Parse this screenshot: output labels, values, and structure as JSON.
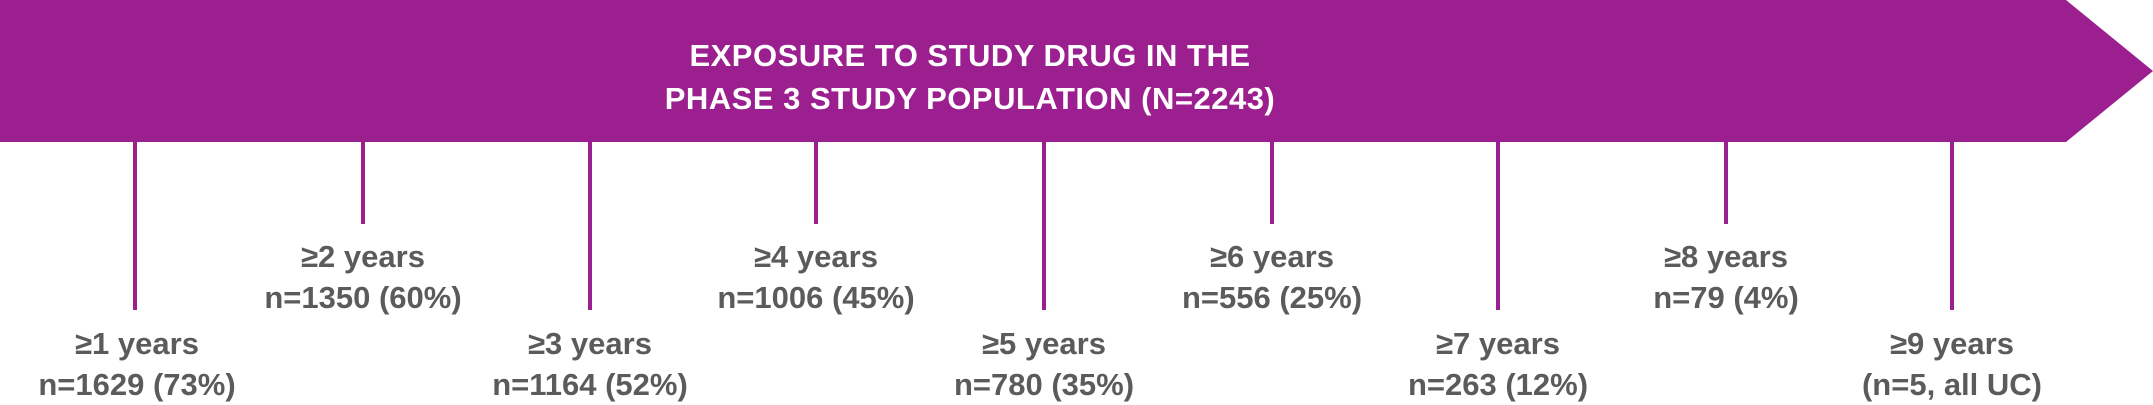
{
  "colors": {
    "banner": "#9b1f8e",
    "line": "#9b1f8e",
    "text": "#5b5b5b",
    "title_text": "#ffffff"
  },
  "title": {
    "line1": "EXPOSURE TO STUDY DRUG IN THE",
    "line2": "PHASE 3 STUDY POPULATION (N=2243)"
  },
  "milestones": [
    {
      "years": "≥1 years",
      "count": "n=1629 (73%)"
    },
    {
      "years": "≥2 years",
      "count": "n=1350 (60%)"
    },
    {
      "years": "≥3 years",
      "count": "n=1164 (52%)"
    },
    {
      "years": "≥4 years",
      "count": "n=1006 (45%)"
    },
    {
      "years": "≥5 years",
      "count": "n=780 (35%)"
    },
    {
      "years": "≥6 years",
      "count": "n=556 (25%)"
    },
    {
      "years": "≥7 years",
      "count": "n=263 (12%)"
    },
    {
      "years": "≥8 years",
      "count": "n=79 (4%)"
    },
    {
      "years": "≥9 years",
      "count": "(n=5, all UC)"
    }
  ]
}
